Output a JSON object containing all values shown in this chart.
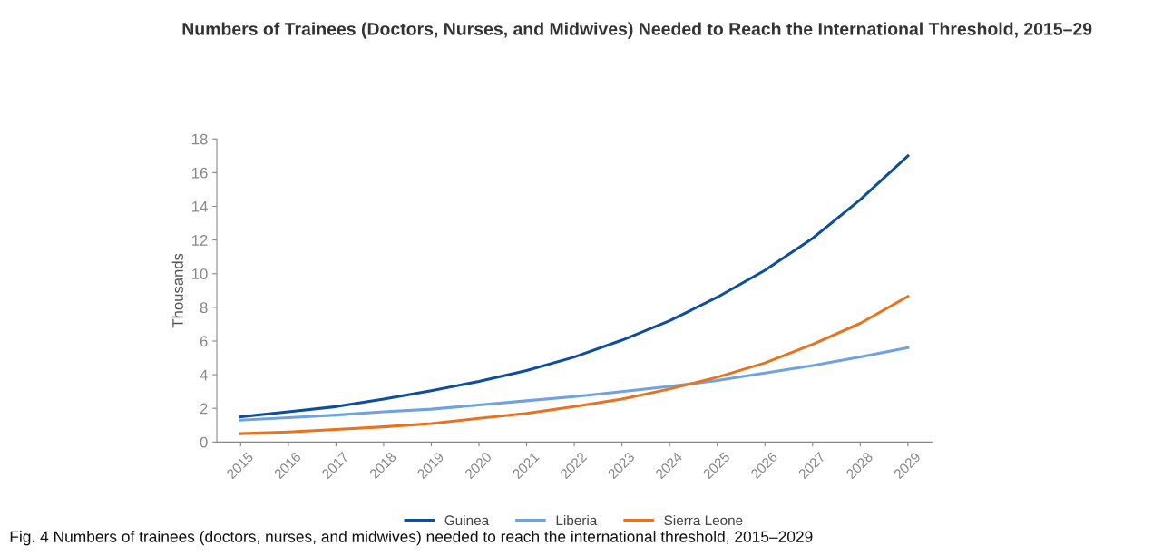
{
  "chart_data": {
    "type": "line",
    "title": "Numbers of Trainees (Doctors, Nurses, and Midwives) Needed to Reach the International Threshold, 2015–29",
    "ylabel": "Thousands",
    "categories": [
      "2015",
      "2016",
      "2017",
      "2018",
      "2019",
      "2020",
      "2021",
      "2022",
      "2023",
      "2024",
      "2025",
      "2026",
      "2027",
      "2028",
      "2029"
    ],
    "series": [
      {
        "name": "Guinea",
        "color": "#0d4f9c",
        "values": [
          1.5,
          1.8,
          2.1,
          2.55,
          3.05,
          3.6,
          4.25,
          5.05,
          6.05,
          7.2,
          8.6,
          10.2,
          12.1,
          14.4,
          17.0
        ]
      },
      {
        "name": "Liberia",
        "color": "#6fa3e0",
        "values": [
          1.3,
          1.45,
          1.6,
          1.8,
          1.95,
          2.2,
          2.45,
          2.7,
          3.0,
          3.3,
          3.65,
          4.1,
          4.55,
          5.05,
          5.6
        ]
      },
      {
        "name": "Sierra Leone",
        "color": "#e8731e",
        "values": [
          0.5,
          0.6,
          0.75,
          0.9,
          1.1,
          1.4,
          1.7,
          2.1,
          2.55,
          3.15,
          3.85,
          4.7,
          5.8,
          7.05,
          8.65
        ]
      }
    ],
    "ylim": [
      0,
      18
    ],
    "yticks": [
      0,
      2,
      4,
      6,
      8,
      10,
      12,
      14,
      16,
      18
    ],
    "grid": false,
    "legend": "bottom",
    "marker": "none",
    "line_style": "solid",
    "annotations": [
      "Fig. 4 Numbers of trainees (doctors, nurses, and midwives) needed to reach the international threshold, 2015–2029"
    ]
  }
}
